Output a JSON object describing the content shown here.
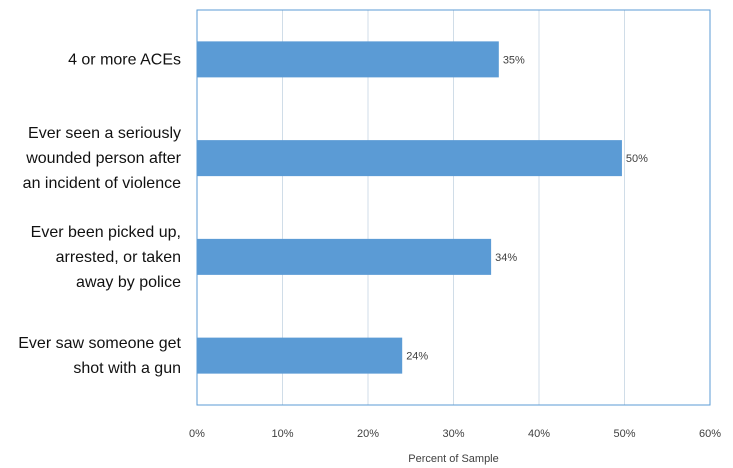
{
  "chart_data": {
    "type": "bar",
    "orientation": "horizontal",
    "categories": [
      [
        "4 or more ACEs"
      ],
      [
        "Ever seen a seriously",
        "wounded person after",
        "an incident of violence"
      ],
      [
        "Ever been picked up,",
        "arrested, or taken",
        "away by police"
      ],
      [
        "Ever saw someone get",
        "shot with a gun"
      ]
    ],
    "values": [
      35.3,
      49.7,
      34.4,
      24.0
    ],
    "data_labels": [
      "35%",
      "50%",
      "34%",
      "24%"
    ],
    "xlabel": "Percent of Sample",
    "xlim": [
      0,
      60
    ],
    "xticks": [
      0,
      10,
      20,
      30,
      40,
      50,
      60
    ],
    "xtick_labels": [
      "0%",
      "10%",
      "20%",
      "30%",
      "40%",
      "50%",
      "60%"
    ],
    "grid": "vertical",
    "legend": "none",
    "colors": {
      "bar": "#5b9bd5",
      "grid": "#d0dde8",
      "frame": "#5b9bd5"
    }
  }
}
